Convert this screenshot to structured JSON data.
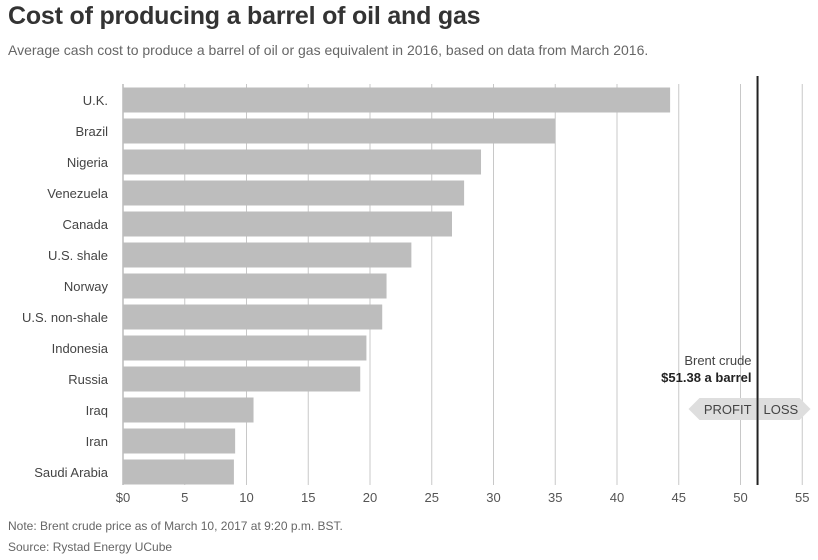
{
  "title": "Cost of producing a barrel of oil and gas",
  "subtitle": "Average cash cost to produce a barrel of oil or gas equivalent in 2016, based on data from March 2016.",
  "note": "Note: Brent crude price as of March 10, 2017 at 9:20 p.m. BST.",
  "source": "Source: Rystad Energy UCube",
  "colors": {
    "bar": "#bdbdbd",
    "grid": "#c8c8c8",
    "reference_line": "#222222",
    "arrow": "#dedede",
    "text": "#333333"
  },
  "chart_data": {
    "type": "bar",
    "orientation": "horizontal",
    "categories": [
      "U.K.",
      "Brazil",
      "Nigeria",
      "Venezuela",
      "Canada",
      "U.S. shale",
      "Norway",
      "U.S. non-shale",
      "Indonesia",
      "Russia",
      "Iraq",
      "Iran",
      "Saudi Arabia"
    ],
    "values": [
      44.3,
      34.99,
      28.99,
      27.62,
      26.64,
      23.35,
      21.34,
      20.99,
      19.71,
      19.21,
      10.57,
      9.08,
      8.98
    ],
    "xlim": [
      0,
      55
    ],
    "xticks": [
      0,
      5,
      10,
      15,
      20,
      25,
      30,
      35,
      40,
      45,
      50,
      55
    ],
    "xtick_labels": [
      "$0",
      "5",
      "10",
      "15",
      "20",
      "25",
      "30",
      "35",
      "40",
      "45",
      "50",
      "55"
    ],
    "grid": true,
    "reference": {
      "value": 51.38,
      "label_line1": "Brent crude",
      "label_line2": "$51.38 a barrel",
      "left_label": "PROFIT",
      "right_label": "LOSS"
    }
  }
}
